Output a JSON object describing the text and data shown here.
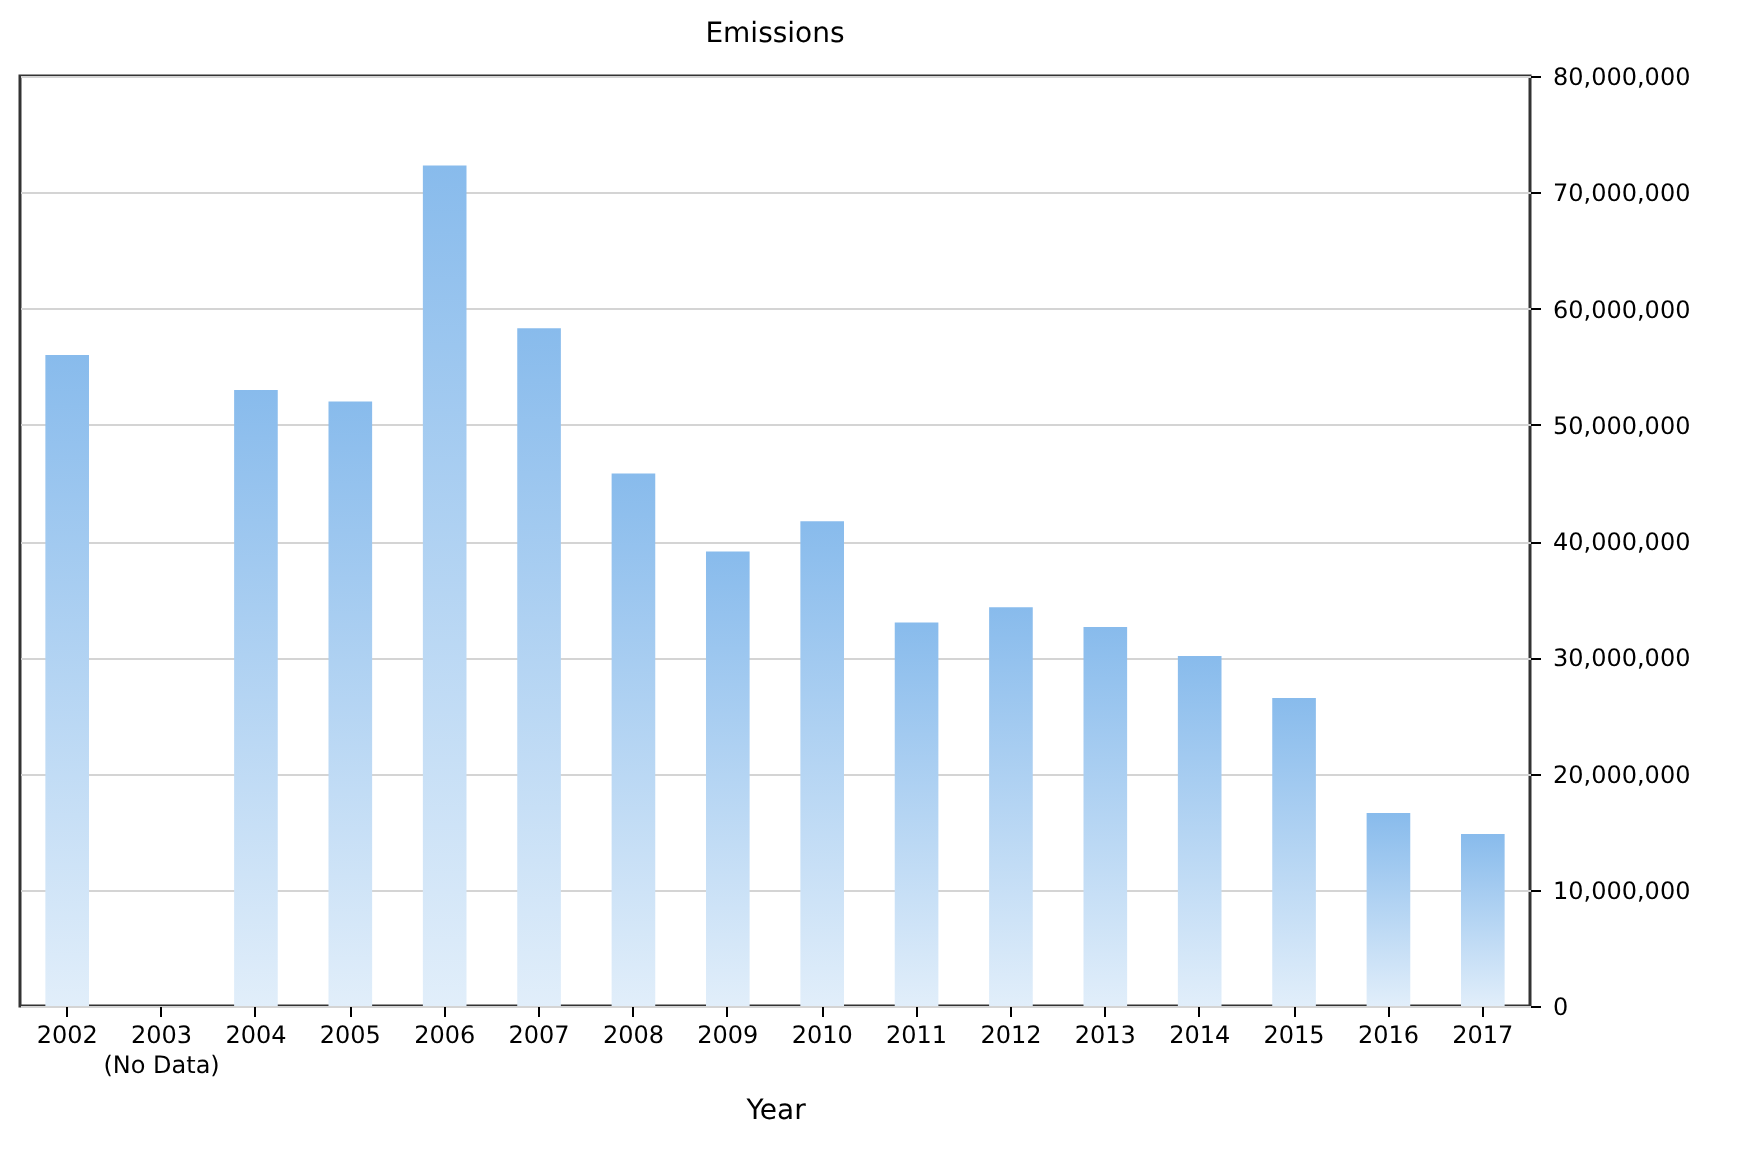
{
  "chart_data": {
    "type": "bar",
    "title": "Emissions",
    "xlabel": "Year",
    "categories": [
      "2002",
      "2003\n(No Data)",
      "2004",
      "2005",
      "2006",
      "2007",
      "2008",
      "2009",
      "2010",
      "2011",
      "2012",
      "2013",
      "2014",
      "2015",
      "2016",
      "2017"
    ],
    "values": [
      56000000,
      null,
      53000000,
      52000000,
      72300000,
      58300000,
      45800000,
      39100000,
      41700000,
      33000000,
      34300000,
      32600000,
      30100000,
      26500000,
      16600000,
      14800000
    ],
    "color": "#88bbec",
    "ylim": [
      0,
      80000000
    ],
    "yticks": [
      0,
      {
        "value": 10000000,
        "label": "10,000,000"
      },
      {
        "value": 20000000,
        "label": "20,000,000"
      },
      {
        "value": 30000000,
        "label": "30,000,000"
      },
      {
        "value": 40000000,
        "label": "40,000,000"
      },
      {
        "value": 50000000,
        "label": "50,000,000"
      },
      {
        "value": 60000000,
        "label": "60,000,000"
      },
      {
        "value": 70000000,
        "label": "70,000,000"
      },
      {
        "value": 80000000,
        "label": "80,000,000"
      }
    ],
    "grid": "y"
  }
}
